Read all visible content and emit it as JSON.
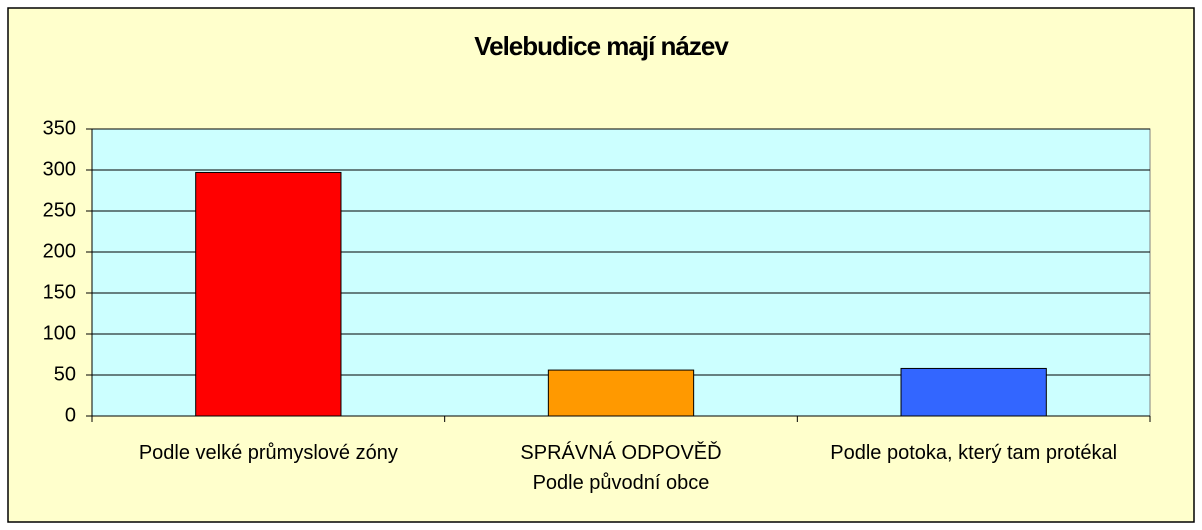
{
  "chart_data": {
    "type": "bar",
    "title": "Velebudice mají název",
    "categories": [
      "Podle velké průmyslové zóny",
      "SPRÁVNÁ ODPOVĚĎ\nPodle původní obce",
      "Podle potoka, který tam protékal"
    ],
    "values": [
      297,
      56,
      58
    ],
    "colors": [
      "#ff0000",
      "#ff9900",
      "#3366ff"
    ],
    "ylim": [
      0,
      350
    ],
    "yticks": [
      0,
      50,
      100,
      150,
      200,
      250,
      300,
      350
    ],
    "grid": true
  }
}
